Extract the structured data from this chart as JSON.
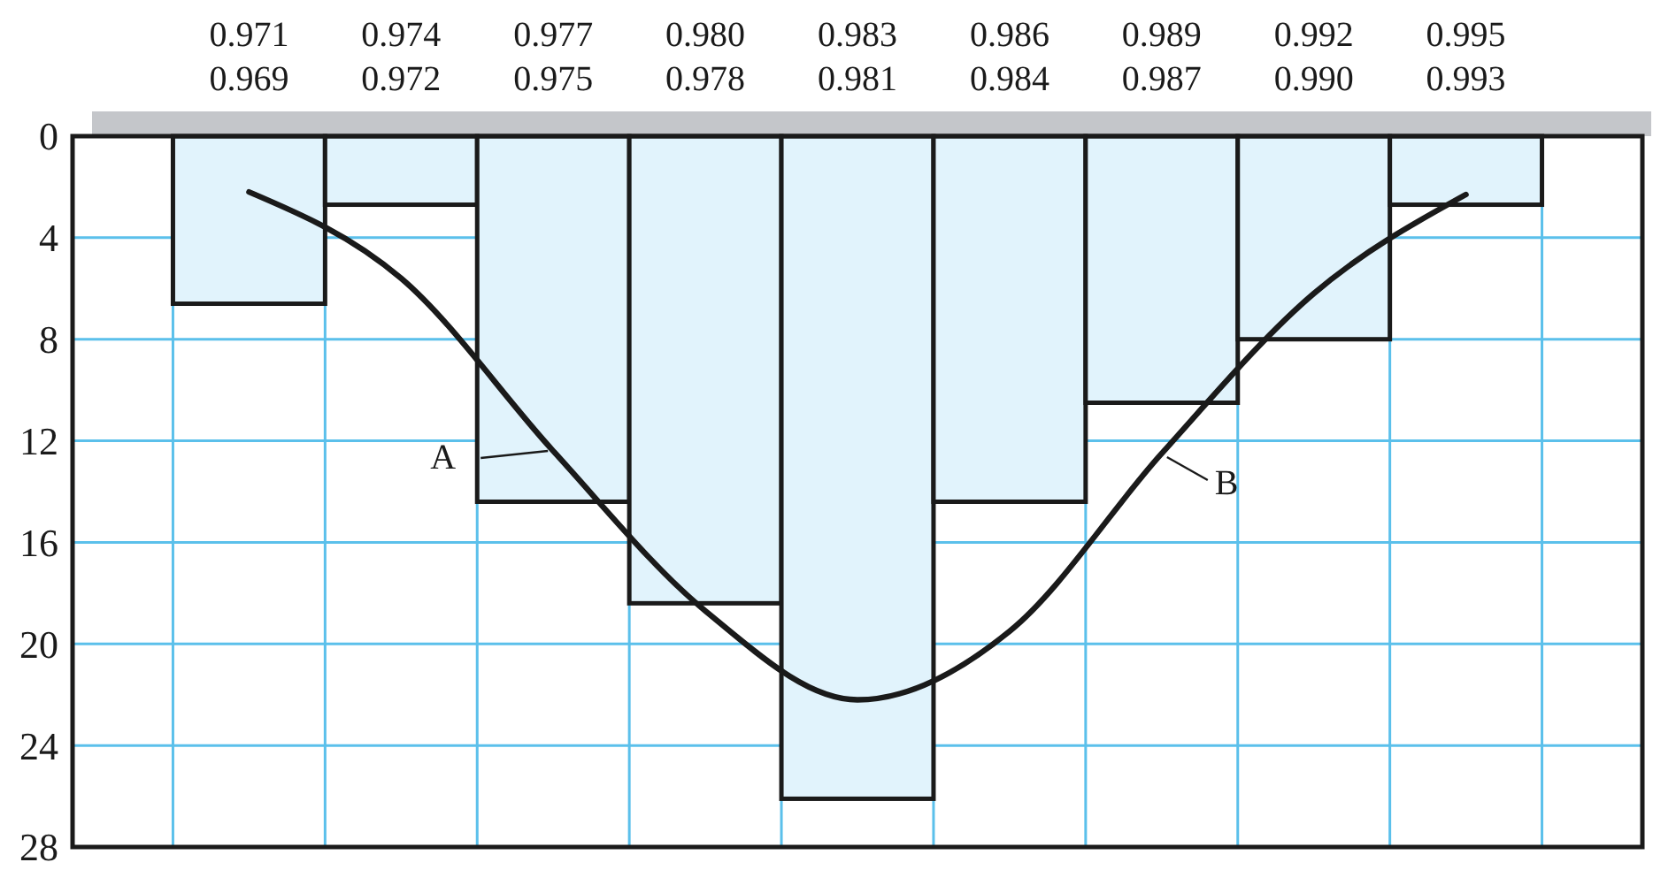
{
  "chart_data": {
    "type": "bar",
    "categories": [
      "0.971\n0.969",
      "0.974\n0.972",
      "0.977\n0.975",
      "0.980\n0.978",
      "0.983\n0.981",
      "0.986\n0.984",
      "0.989\n0.987",
      "0.992\n0.990",
      "0.995\n0.993"
    ],
    "values": [
      6.6,
      2.7,
      14.4,
      18.4,
      26.1,
      14.4,
      10.5,
      8,
      2.7
    ],
    "color": "#e1f3fc",
    "series": [
      {
        "type": "line",
        "color": "#1a1a1a",
        "values": [
          2.2,
          5.6,
          12.4,
          18.7,
          22.2,
          19.5,
          12.5,
          6.2,
          2.3
        ]
      }
    ],
    "ylim": [
      28,
      0
    ],
    "yticks": [
      0,
      4,
      8,
      12,
      16,
      20,
      24,
      28
    ],
    "grid": true,
    "marker": "none",
    "annotations": [
      {
        "text": "A",
        "x": "0.977\n0.975",
        "y": 12.4
      },
      {
        "text": "B",
        "x": "0.989\n0.987",
        "y": 12.5
      }
    ]
  }
}
